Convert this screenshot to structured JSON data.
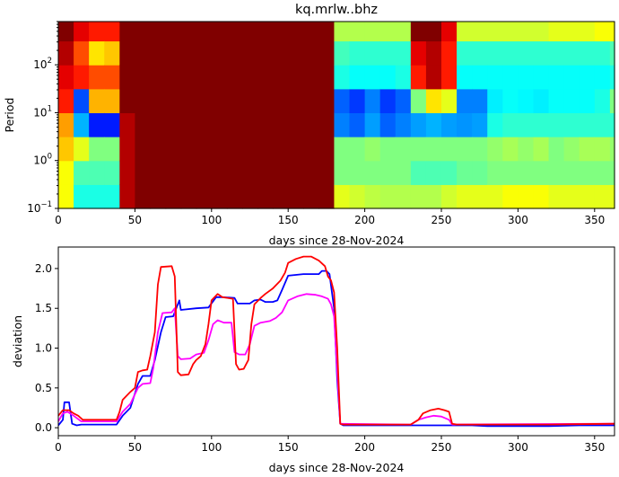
{
  "chart_data": [
    {
      "type": "heatmap",
      "title": "kq.mrlw..bhz",
      "xlabel": "days since 28-Nov-2024",
      "ylabel": "Period",
      "colormap": "jet",
      "xlim": [
        0,
        363
      ],
      "ylim": [
        0.1,
        800
      ],
      "yscale": "log",
      "xticks": [
        0,
        50,
        100,
        150,
        200,
        250,
        300,
        350
      ],
      "yticks": [
        {
          "base": "10",
          "exp": "−1",
          "value": 0.1
        },
        {
          "base": "10",
          "exp": "0",
          "value": 1
        },
        {
          "base": "10",
          "exp": "1",
          "value": 10
        },
        {
          "base": "10",
          "exp": "2",
          "value": 100
        }
      ],
      "x_bin_edges": [
        0,
        10,
        20,
        30,
        40,
        50,
        60,
        70,
        80,
        90,
        100,
        110,
        120,
        130,
        140,
        150,
        160,
        170,
        180,
        190,
        200,
        210,
        220,
        230,
        240,
        250,
        260,
        270,
        280,
        290,
        300,
        310,
        320,
        330,
        340,
        350,
        360,
        363
      ],
      "log10_period_bin_edges": [
        -1,
        -0.5,
        0,
        0.5,
        1,
        1.5,
        2,
        2.5,
        2.9
      ],
      "values_note_scale": [
        0,
        1
      ],
      "values": [
        [
          0.62,
          0.62,
          0.68,
          0.72,
          0.85,
          0.9,
          0.95,
          1.0
        ],
        [
          0.4,
          0.45,
          0.6,
          0.3,
          0.2,
          0.85,
          0.8,
          0.9
        ],
        [
          0.4,
          0.45,
          0.5,
          0.15,
          0.7,
          0.8,
          0.65,
          0.85
        ],
        [
          0.4,
          0.45,
          0.5,
          0.15,
          0.7,
          0.8,
          0.68,
          0.85
        ],
        [
          0.95,
          0.95,
          0.95,
          0.95,
          1.0,
          1.0,
          1.0,
          1.0
        ],
        [
          1,
          1,
          1,
          1,
          1,
          1,
          1,
          1
        ],
        [
          1,
          1,
          1,
          1,
          1,
          1,
          1,
          1
        ],
        [
          1,
          1,
          1,
          1,
          1,
          1,
          1,
          1
        ],
        [
          1,
          1,
          1,
          1,
          1,
          1,
          1,
          1
        ],
        [
          1,
          1,
          1,
          1,
          1,
          1,
          1,
          1
        ],
        [
          1,
          1,
          1,
          1,
          1,
          1,
          1,
          1
        ],
        [
          1,
          1,
          1,
          1,
          1,
          1,
          1,
          1
        ],
        [
          1,
          1,
          1,
          1,
          1,
          1,
          1,
          1
        ],
        [
          1,
          1,
          1,
          1,
          1,
          1,
          1,
          1
        ],
        [
          1,
          1,
          1,
          1,
          1,
          1,
          1,
          1
        ],
        [
          1,
          1,
          1,
          1,
          1,
          1,
          1,
          1
        ],
        [
          1,
          1,
          1,
          1,
          1,
          1,
          1,
          1
        ],
        [
          1,
          1,
          1,
          1,
          1,
          1,
          1,
          1
        ],
        [
          0.6,
          0.5,
          0.5,
          0.25,
          0.22,
          0.4,
          0.44,
          0.55
        ],
        [
          0.58,
          0.5,
          0.5,
          0.22,
          0.18,
          0.38,
          0.42,
          0.55
        ],
        [
          0.56,
          0.5,
          0.52,
          0.28,
          0.25,
          0.38,
          0.42,
          0.55
        ],
        [
          0.55,
          0.5,
          0.5,
          0.22,
          0.18,
          0.38,
          0.42,
          0.55
        ],
        [
          0.55,
          0.5,
          0.5,
          0.25,
          0.22,
          0.4,
          0.42,
          0.55
        ],
        [
          0.55,
          0.45,
          0.5,
          0.28,
          0.5,
          0.85,
          0.9,
          1.0
        ],
        [
          0.55,
          0.45,
          0.5,
          0.3,
          0.65,
          0.95,
          0.95,
          1.0
        ],
        [
          0.58,
          0.45,
          0.5,
          0.28,
          0.6,
          0.85,
          0.85,
          0.9
        ],
        [
          0.6,
          0.48,
          0.5,
          0.27,
          0.25,
          0.38,
          0.42,
          0.58
        ],
        [
          0.6,
          0.48,
          0.5,
          0.28,
          0.25,
          0.38,
          0.42,
          0.58
        ],
        [
          0.6,
          0.5,
          0.52,
          0.4,
          0.36,
          0.38,
          0.42,
          0.58
        ],
        [
          0.62,
          0.5,
          0.54,
          0.42,
          0.38,
          0.38,
          0.42,
          0.58
        ],
        [
          0.62,
          0.5,
          0.52,
          0.42,
          0.37,
          0.38,
          0.42,
          0.58
        ],
        [
          0.62,
          0.5,
          0.54,
          0.42,
          0.36,
          0.38,
          0.42,
          0.58
        ],
        [
          0.6,
          0.5,
          0.5,
          0.42,
          0.38,
          0.38,
          0.42,
          0.6
        ],
        [
          0.6,
          0.5,
          0.52,
          0.42,
          0.38,
          0.38,
          0.42,
          0.6
        ],
        [
          0.6,
          0.5,
          0.54,
          0.42,
          0.38,
          0.38,
          0.42,
          0.6
        ],
        [
          0.6,
          0.5,
          0.54,
          0.42,
          0.4,
          0.38,
          0.42,
          0.62
        ],
        [
          0.6,
          0.5,
          0.52,
          0.42,
          0.5,
          0.4,
          0.45,
          0.62
        ]
      ]
    },
    {
      "type": "line",
      "xlabel": "days since 28-Nov-2024",
      "ylabel": "deviation",
      "xlim": [
        0,
        363
      ],
      "ylim": [
        -0.1,
        2.27
      ],
      "xticks": [
        0,
        50,
        100,
        150,
        200,
        250,
        300,
        350
      ],
      "yticks": [
        "0.0",
        "0.5",
        "1.0",
        "1.5",
        "2.0"
      ],
      "series": [
        {
          "color": "#0000ff",
          "points": [
            [
              0,
              0.03
            ],
            [
              3,
              0.1
            ],
            [
              4,
              0.32
            ],
            [
              7,
              0.32
            ],
            [
              9,
              0.05
            ],
            [
              12,
              0.03
            ],
            [
              15,
              0.04
            ],
            [
              38,
              0.04
            ],
            [
              42,
              0.15
            ],
            [
              47,
              0.25
            ],
            [
              52,
              0.55
            ],
            [
              55,
              0.65
            ],
            [
              60,
              0.65
            ],
            [
              63,
              0.85
            ],
            [
              67,
              1.2
            ],
            [
              70,
              1.39
            ],
            [
              75,
              1.4
            ],
            [
              77,
              1.5
            ],
            [
              79,
              1.6
            ],
            [
              80,
              1.48
            ],
            [
              90,
              1.5
            ],
            [
              98,
              1.51
            ],
            [
              103,
              1.64
            ],
            [
              107,
              1.64
            ],
            [
              115,
              1.63
            ],
            [
              117,
              1.56
            ],
            [
              125,
              1.56
            ],
            [
              128,
              1.6
            ],
            [
              132,
              1.61
            ],
            [
              135,
              1.58
            ],
            [
              140,
              1.58
            ],
            [
              143,
              1.6
            ],
            [
              146,
              1.73
            ],
            [
              150,
              1.91
            ],
            [
              160,
              1.93
            ],
            [
              170,
              1.93
            ],
            [
              172,
              1.97
            ],
            [
              175,
              1.97
            ],
            [
              177,
              1.93
            ],
            [
              180,
              1.5
            ],
            [
              182,
              0.6
            ],
            [
              184,
              0.05
            ],
            [
              186,
              0.03
            ],
            [
              270,
              0.03
            ],
            [
              280,
              0.02
            ],
            [
              320,
              0.02
            ],
            [
              340,
              0.03
            ],
            [
              363,
              0.03
            ]
          ]
        },
        {
          "color": "#ff00ff",
          "points": [
            [
              0,
              0.08
            ],
            [
              3,
              0.18
            ],
            [
              6,
              0.2
            ],
            [
              10,
              0.15
            ],
            [
              15,
              0.08
            ],
            [
              38,
              0.08
            ],
            [
              42,
              0.2
            ],
            [
              47,
              0.3
            ],
            [
              52,
              0.5
            ],
            [
              55,
              0.55
            ],
            [
              60,
              0.56
            ],
            [
              62,
              0.75
            ],
            [
              65,
              1.2
            ],
            [
              68,
              1.44
            ],
            [
              74,
              1.45
            ],
            [
              76,
              1.5
            ],
            [
              78,
              0.9
            ],
            [
              80,
              0.86
            ],
            [
              86,
              0.87
            ],
            [
              90,
              0.92
            ],
            [
              95,
              0.94
            ],
            [
              98,
              1.1
            ],
            [
              101,
              1.3
            ],
            [
              104,
              1.35
            ],
            [
              108,
              1.32
            ],
            [
              113,
              1.32
            ],
            [
              115,
              0.95
            ],
            [
              118,
              0.92
            ],
            [
              122,
              0.92
            ],
            [
              125,
              1.05
            ],
            [
              128,
              1.28
            ],
            [
              132,
              1.32
            ],
            [
              138,
              1.34
            ],
            [
              142,
              1.38
            ],
            [
              146,
              1.45
            ],
            [
              150,
              1.6
            ],
            [
              156,
              1.65
            ],
            [
              162,
              1.68
            ],
            [
              168,
              1.67
            ],
            [
              172,
              1.65
            ],
            [
              176,
              1.62
            ],
            [
              178,
              1.55
            ],
            [
              180,
              1.4
            ],
            [
              182,
              0.7
            ],
            [
              184,
              0.05
            ],
            [
              230,
              0.04
            ],
            [
              235,
              0.1
            ],
            [
              240,
              0.13
            ],
            [
              245,
              0.15
            ],
            [
              250,
              0.14
            ],
            [
              255,
              0.1
            ],
            [
              257,
              0.04
            ],
            [
              363,
              0.05
            ]
          ]
        },
        {
          "color": "#ff0000",
          "points": [
            [
              0,
              0.15
            ],
            [
              3,
              0.22
            ],
            [
              7,
              0.22
            ],
            [
              10,
              0.18
            ],
            [
              13,
              0.15
            ],
            [
              16,
              0.1
            ],
            [
              38,
              0.1
            ],
            [
              40,
              0.2
            ],
            [
              42,
              0.35
            ],
            [
              47,
              0.45
            ],
            [
              50,
              0.5
            ],
            [
              52,
              0.7
            ],
            [
              55,
              0.72
            ],
            [
              58,
              0.73
            ],
            [
              60,
              0.9
            ],
            [
              63,
              1.2
            ],
            [
              65,
              1.8
            ],
            [
              67,
              2.02
            ],
            [
              74,
              2.03
            ],
            [
              76,
              1.9
            ],
            [
              78,
              0.7
            ],
            [
              80,
              0.66
            ],
            [
              85,
              0.67
            ],
            [
              88,
              0.8
            ],
            [
              90,
              0.85
            ],
            [
              93,
              0.9
            ],
            [
              96,
              1.05
            ],
            [
              98,
              1.3
            ],
            [
              100,
              1.6
            ],
            [
              104,
              1.68
            ],
            [
              107,
              1.64
            ],
            [
              114,
              1.62
            ],
            [
              116,
              0.8
            ],
            [
              118,
              0.73
            ],
            [
              121,
              0.74
            ],
            [
              124,
              0.85
            ],
            [
              126,
              1.3
            ],
            [
              128,
              1.55
            ],
            [
              132,
              1.63
            ],
            [
              135,
              1.68
            ],
            [
              140,
              1.75
            ],
            [
              145,
              1.85
            ],
            [
              148,
              1.95
            ],
            [
              150,
              2.07
            ],
            [
              155,
              2.12
            ],
            [
              160,
              2.15
            ],
            [
              165,
              2.15
            ],
            [
              170,
              2.1
            ],
            [
              174,
              2.03
            ],
            [
              176,
              1.9
            ],
            [
              178,
              1.85
            ],
            [
              180,
              1.7
            ],
            [
              182,
              1.0
            ],
            [
              184,
              0.05
            ],
            [
              186,
              0.04
            ],
            [
              230,
              0.04
            ],
            [
              235,
              0.1
            ],
            [
              238,
              0.18
            ],
            [
              243,
              0.22
            ],
            [
              248,
              0.24
            ],
            [
              252,
              0.22
            ],
            [
              255,
              0.2
            ],
            [
              257,
              0.05
            ],
            [
              260,
              0.04
            ],
            [
              320,
              0.04
            ],
            [
              363,
              0.05
            ]
          ]
        }
      ]
    }
  ]
}
